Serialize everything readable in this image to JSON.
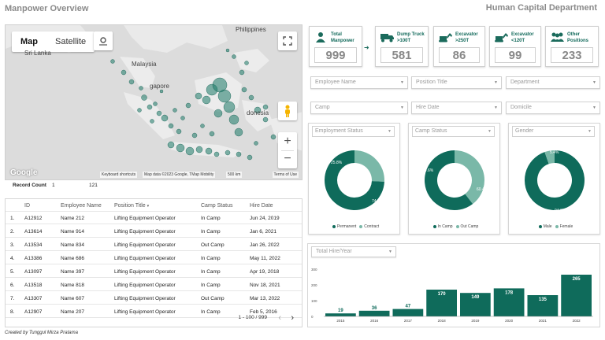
{
  "header": {
    "title": "Manpower Overview",
    "department": "Human Capital Department"
  },
  "map": {
    "tab_map": "Map",
    "tab_satellite": "Satellite",
    "labels": {
      "sri_lanka": "Sri Lanka",
      "malaysia": "Malaysia",
      "singapore": "gapore",
      "philippines": "Philippines",
      "donesia": "donesia"
    },
    "google_logo": "Google",
    "attribution": {
      "shortcuts": "Keyboard shortcuts",
      "mapdata": "Map data ©2023 Google, TMap Mobility",
      "scale": "500 km",
      "terms": "Terms of Use"
    },
    "zoom_in": "+",
    "zoom_out": "−",
    "accent": "#1b7a67"
  },
  "record_count": {
    "label": "Record Count",
    "value": "1",
    "total": "121"
  },
  "kpis": [
    {
      "label_line1": "Total",
      "label_line2": "Manpower",
      "value": "999",
      "icon": "person-icon"
    },
    {
      "label_line1": "Dump Truck",
      "label_line2": ">100T",
      "value": "581",
      "icon": "dump-truck-icon"
    },
    {
      "label_line1": "Excavator",
      "label_line2": ">250T",
      "value": "86",
      "icon": "excavator-icon"
    },
    {
      "label_line1": "Excavator",
      "label_line2": "<120T",
      "value": "99",
      "icon": "excavator-icon"
    },
    {
      "label_line1": "Other",
      "label_line2": "Positions",
      "value": "233",
      "icon": "group-icon"
    }
  ],
  "filters": {
    "employee_name": "Employee Name",
    "position_title": "Position Title",
    "department": "Department",
    "camp": "Camp",
    "hire_date": "Hire Date",
    "domicile": "Domicile"
  },
  "donuts": [
    {
      "filter": "Employment Status",
      "labels": [
        "25.8%",
        "74.2%"
      ],
      "legend": [
        "Permanent",
        "Contract"
      ]
    },
    {
      "filter": "Camp Status",
      "labels": [
        "39.6%",
        "60.4%"
      ],
      "legend": [
        "In Camp",
        "Out Camp"
      ]
    },
    {
      "filter": "Gender",
      "labels": [
        "5.4%",
        "94.6%"
      ],
      "legend": [
        "Male",
        "Female"
      ]
    }
  ],
  "donut_values": [
    [
      25.8,
      74.2
    ],
    [
      39.6,
      60.4
    ],
    [
      94.6,
      5.4
    ]
  ],
  "colors": {
    "dark": "#0f6b5b",
    "light": "#7ab8a8"
  },
  "table": {
    "columns": [
      "ID",
      "Employee Name",
      "Position Title",
      "Camp Status",
      "Hire Date"
    ],
    "sort_indicator": "▾",
    "rows": [
      {
        "n": "1.",
        "id": "A12912",
        "name": "Name 212",
        "position": "Lifting Equipment Operator",
        "camp": "In Camp",
        "date": "Jun 24, 2019"
      },
      {
        "n": "2.",
        "id": "A13614",
        "name": "Name 914",
        "position": "Lifting Equipment Operator",
        "camp": "In Camp",
        "date": "Jan 6, 2021"
      },
      {
        "n": "3.",
        "id": "A13534",
        "name": "Name 834",
        "position": "Lifting Equipment Operator",
        "camp": "Out Camp",
        "date": "Jan 26, 2022"
      },
      {
        "n": "4.",
        "id": "A13386",
        "name": "Name 686",
        "position": "Lifting Equipment Operator",
        "camp": "In Camp",
        "date": "May 11, 2022"
      },
      {
        "n": "5.",
        "id": "A13097",
        "name": "Name 397",
        "position": "Lifting Equipment Operator",
        "camp": "In Camp",
        "date": "Apr 19, 2018"
      },
      {
        "n": "6.",
        "id": "A13518",
        "name": "Name 818",
        "position": "Lifting Equipment Operator",
        "camp": "In Camp",
        "date": "Nov 18, 2021"
      },
      {
        "n": "7.",
        "id": "A13307",
        "name": "Name 607",
        "position": "Lifting Equipment Operator",
        "camp": "Out Camp",
        "date": "Mar 13, 2022"
      },
      {
        "n": "8.",
        "id": "A12907",
        "name": "Name 207",
        "position": "Lifting Equipment Operator",
        "camp": "In Camp",
        "date": "Feb 5, 2016"
      }
    ],
    "pagination": "1 - 100 / 999",
    "prev": "‹",
    "next": "›"
  },
  "hire_filter": "Total Hire/Year",
  "chart_data": {
    "type": "bar",
    "categories": [
      "2015",
      "2016",
      "2017",
      "2018",
      "2019",
      "2020",
      "2021",
      "2022"
    ],
    "values": [
      19,
      36,
      47,
      170,
      149,
      178,
      135,
      265
    ],
    "yticks": [
      "300",
      "200",
      "100",
      "0"
    ],
    "ylim": [
      0,
      300
    ]
  },
  "credit": "Created by Tunggul Mirza Pratama"
}
